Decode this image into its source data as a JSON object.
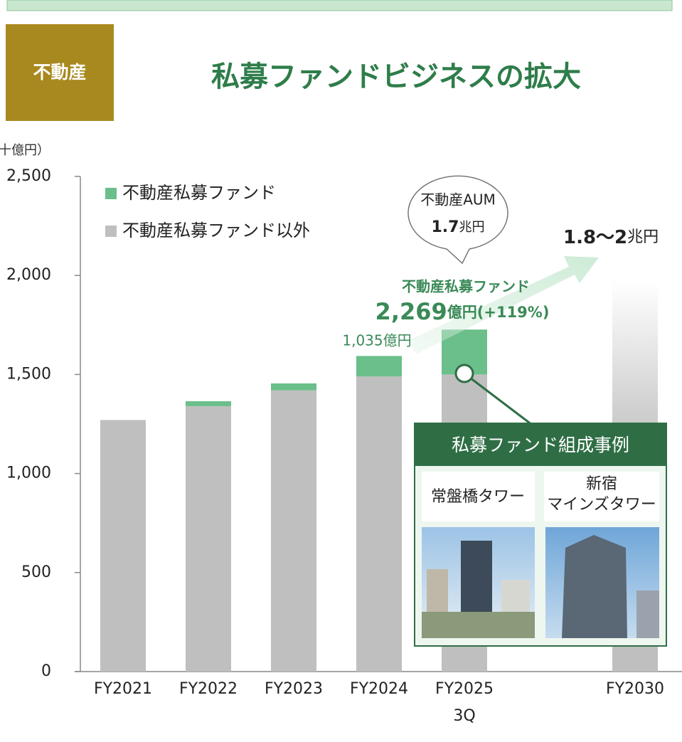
{
  "header": {
    "badge": "不動産",
    "title": "私募ファンドビジネスの拡大"
  },
  "chart_data": {
    "type": "bar",
    "stacked": true,
    "unit_label": "十億円）",
    "categories": [
      "FY2021",
      "FY2022",
      "FY2023",
      "FY2024",
      "FY2025\n3Q",
      null,
      "FY2030"
    ],
    "series": [
      {
        "name": "不動産私募ファンド以外",
        "color": "#bfbfbf",
        "values": [
          1270,
          1340,
          1420,
          1490,
          1500,
          null,
          null
        ]
      },
      {
        "name": "不動産私募ファンド",
        "color": "#6bbf8a",
        "values": [
          null,
          25,
          35,
          103.5,
          226.9,
          null,
          null
        ],
        "value_labels": [
          null,
          null,
          null,
          "1,035億円",
          "2,269",
          null,
          null
        ]
      }
    ],
    "forecast_values": [
      null,
      null,
      null,
      null,
      null,
      null,
      1970
    ],
    "ylim": [
      0,
      2500
    ],
    "yticks": [
      0,
      500,
      {
        "value": 1000,
        "label": "1,000"
      },
      {
        "value": 1500,
        "label": "1,500"
      },
      {
        "value": 2000,
        "label": "2,000"
      },
      {
        "value": 2500,
        "label": "2,500"
      }
    ],
    "annotations": {
      "aum_label": "不動産AUM",
      "aum_value": "1.7",
      "aum_unit": "兆円",
      "target_value": "1.8～2",
      "target_unit": "兆円",
      "fund_label": "不動産私募ファンド",
      "fund_growth": "億円(+119%)"
    }
  },
  "case_box": {
    "title": "私募ファンド組成事例",
    "items": [
      "常盤橋タワー",
      "新宿\nマインズタワー"
    ]
  }
}
